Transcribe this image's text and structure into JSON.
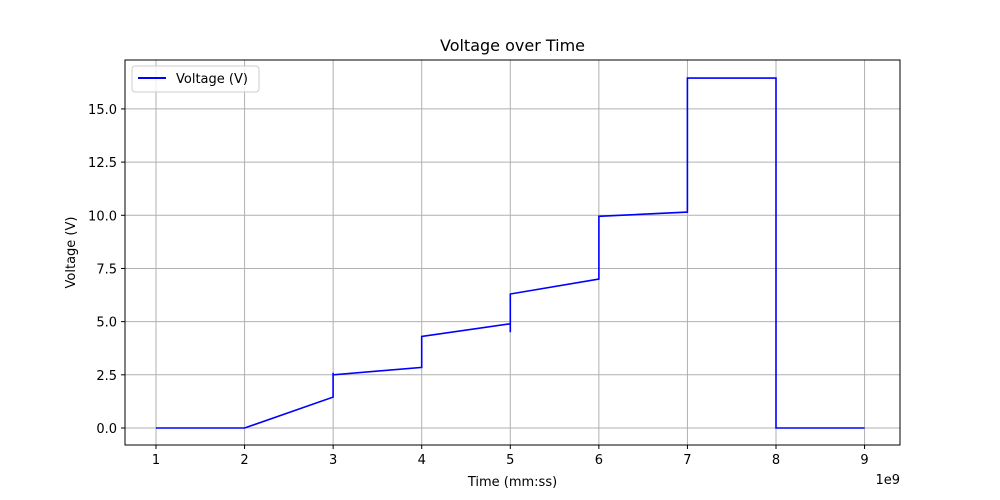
{
  "chart_data": {
    "type": "line",
    "title": "Voltage over Time",
    "xlabel": "Time (mm:ss)",
    "ylabel": "Voltage (V)",
    "x_offset_label": "1e9",
    "xlim": [
      0.65,
      9.4
    ],
    "ylim": [
      -0.8,
      17.3
    ],
    "xticks": [
      1,
      2,
      3,
      4,
      5,
      6,
      7,
      8,
      9
    ],
    "xtick_labels": [
      "1",
      "2",
      "3",
      "4",
      "5",
      "6",
      "7",
      "8",
      "9"
    ],
    "yticks": [
      0,
      2.5,
      5,
      7.5,
      10,
      12.5,
      15
    ],
    "ytick_labels": [
      "0.0",
      "2.5",
      "5.0",
      "7.5",
      "10.0",
      "12.5",
      "15.0"
    ],
    "grid": true,
    "legend": {
      "position": "top-left"
    },
    "series": [
      {
        "name": "Voltage (V)",
        "color": "#0000ff",
        "x": [
          1,
          2,
          3,
          3,
          3,
          3,
          4,
          4,
          5,
          5,
          5,
          6,
          6,
          7,
          7,
          8,
          8,
          9
        ],
        "y": [
          0,
          0,
          1.45,
          2.6,
          2.35,
          2.5,
          2.85,
          4.3,
          4.9,
          4.5,
          6.3,
          7.0,
          9.95,
          10.15,
          16.45,
          16.45,
          0,
          0
        ]
      }
    ]
  }
}
